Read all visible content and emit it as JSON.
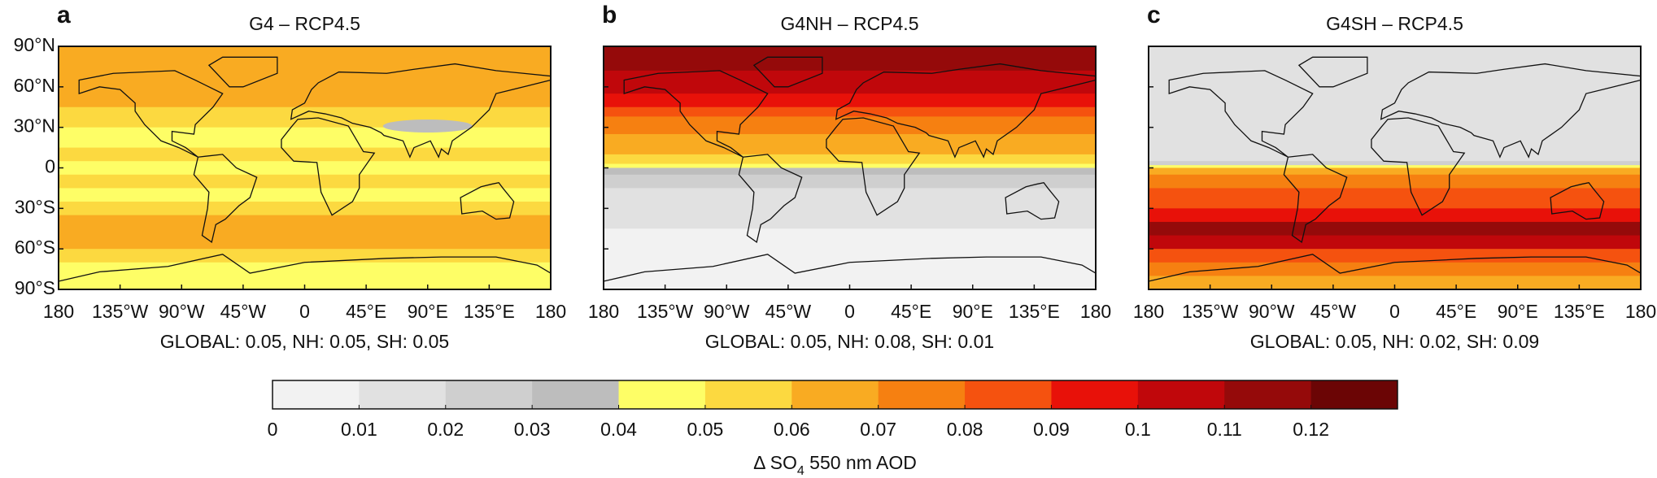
{
  "panels": [
    {
      "letter": "a",
      "title": "G4 – RCP4.5",
      "stats": "GLOBAL: 0.05, NH: 0.05, SH: 0.05"
    },
    {
      "letter": "b",
      "title": "G4NH – RCP4.5",
      "stats": "GLOBAL: 0.05, NH: 0.08, SH: 0.01"
    },
    {
      "letter": "c",
      "title": "G4SH – RCP4.5",
      "stats": "GLOBAL: 0.05, NH: 0.02, SH: 0.09"
    }
  ],
  "lat_labels": [
    "90°N",
    "60°N",
    "30°N",
    "0",
    "30°S",
    "60°S",
    "90°S"
  ],
  "lon_labels": [
    "180",
    "135°W",
    "90°W",
    "45°W",
    "0",
    "45°E",
    "90°E",
    "135°E",
    "180"
  ],
  "colorbar": {
    "colors": [
      "#f2f2f2",
      "#e1e1e1",
      "#cfcfcf",
      "#bdbdbd",
      "#fefe66",
      "#fcd940",
      "#f9ab22",
      "#f68011",
      "#f5520f",
      "#e81109",
      "#c0070b",
      "#950a0a",
      "#6b0505"
    ],
    "ticks": [
      0,
      0.01,
      0.02,
      0.03,
      0.04,
      0.05,
      0.06,
      0.07,
      0.08,
      0.09,
      0.1,
      0.11,
      0.12
    ],
    "lim": [
      0,
      0.13
    ],
    "label_parts": [
      "Δ SO",
      "4",
      " 550 nm AOD"
    ]
  }
}
